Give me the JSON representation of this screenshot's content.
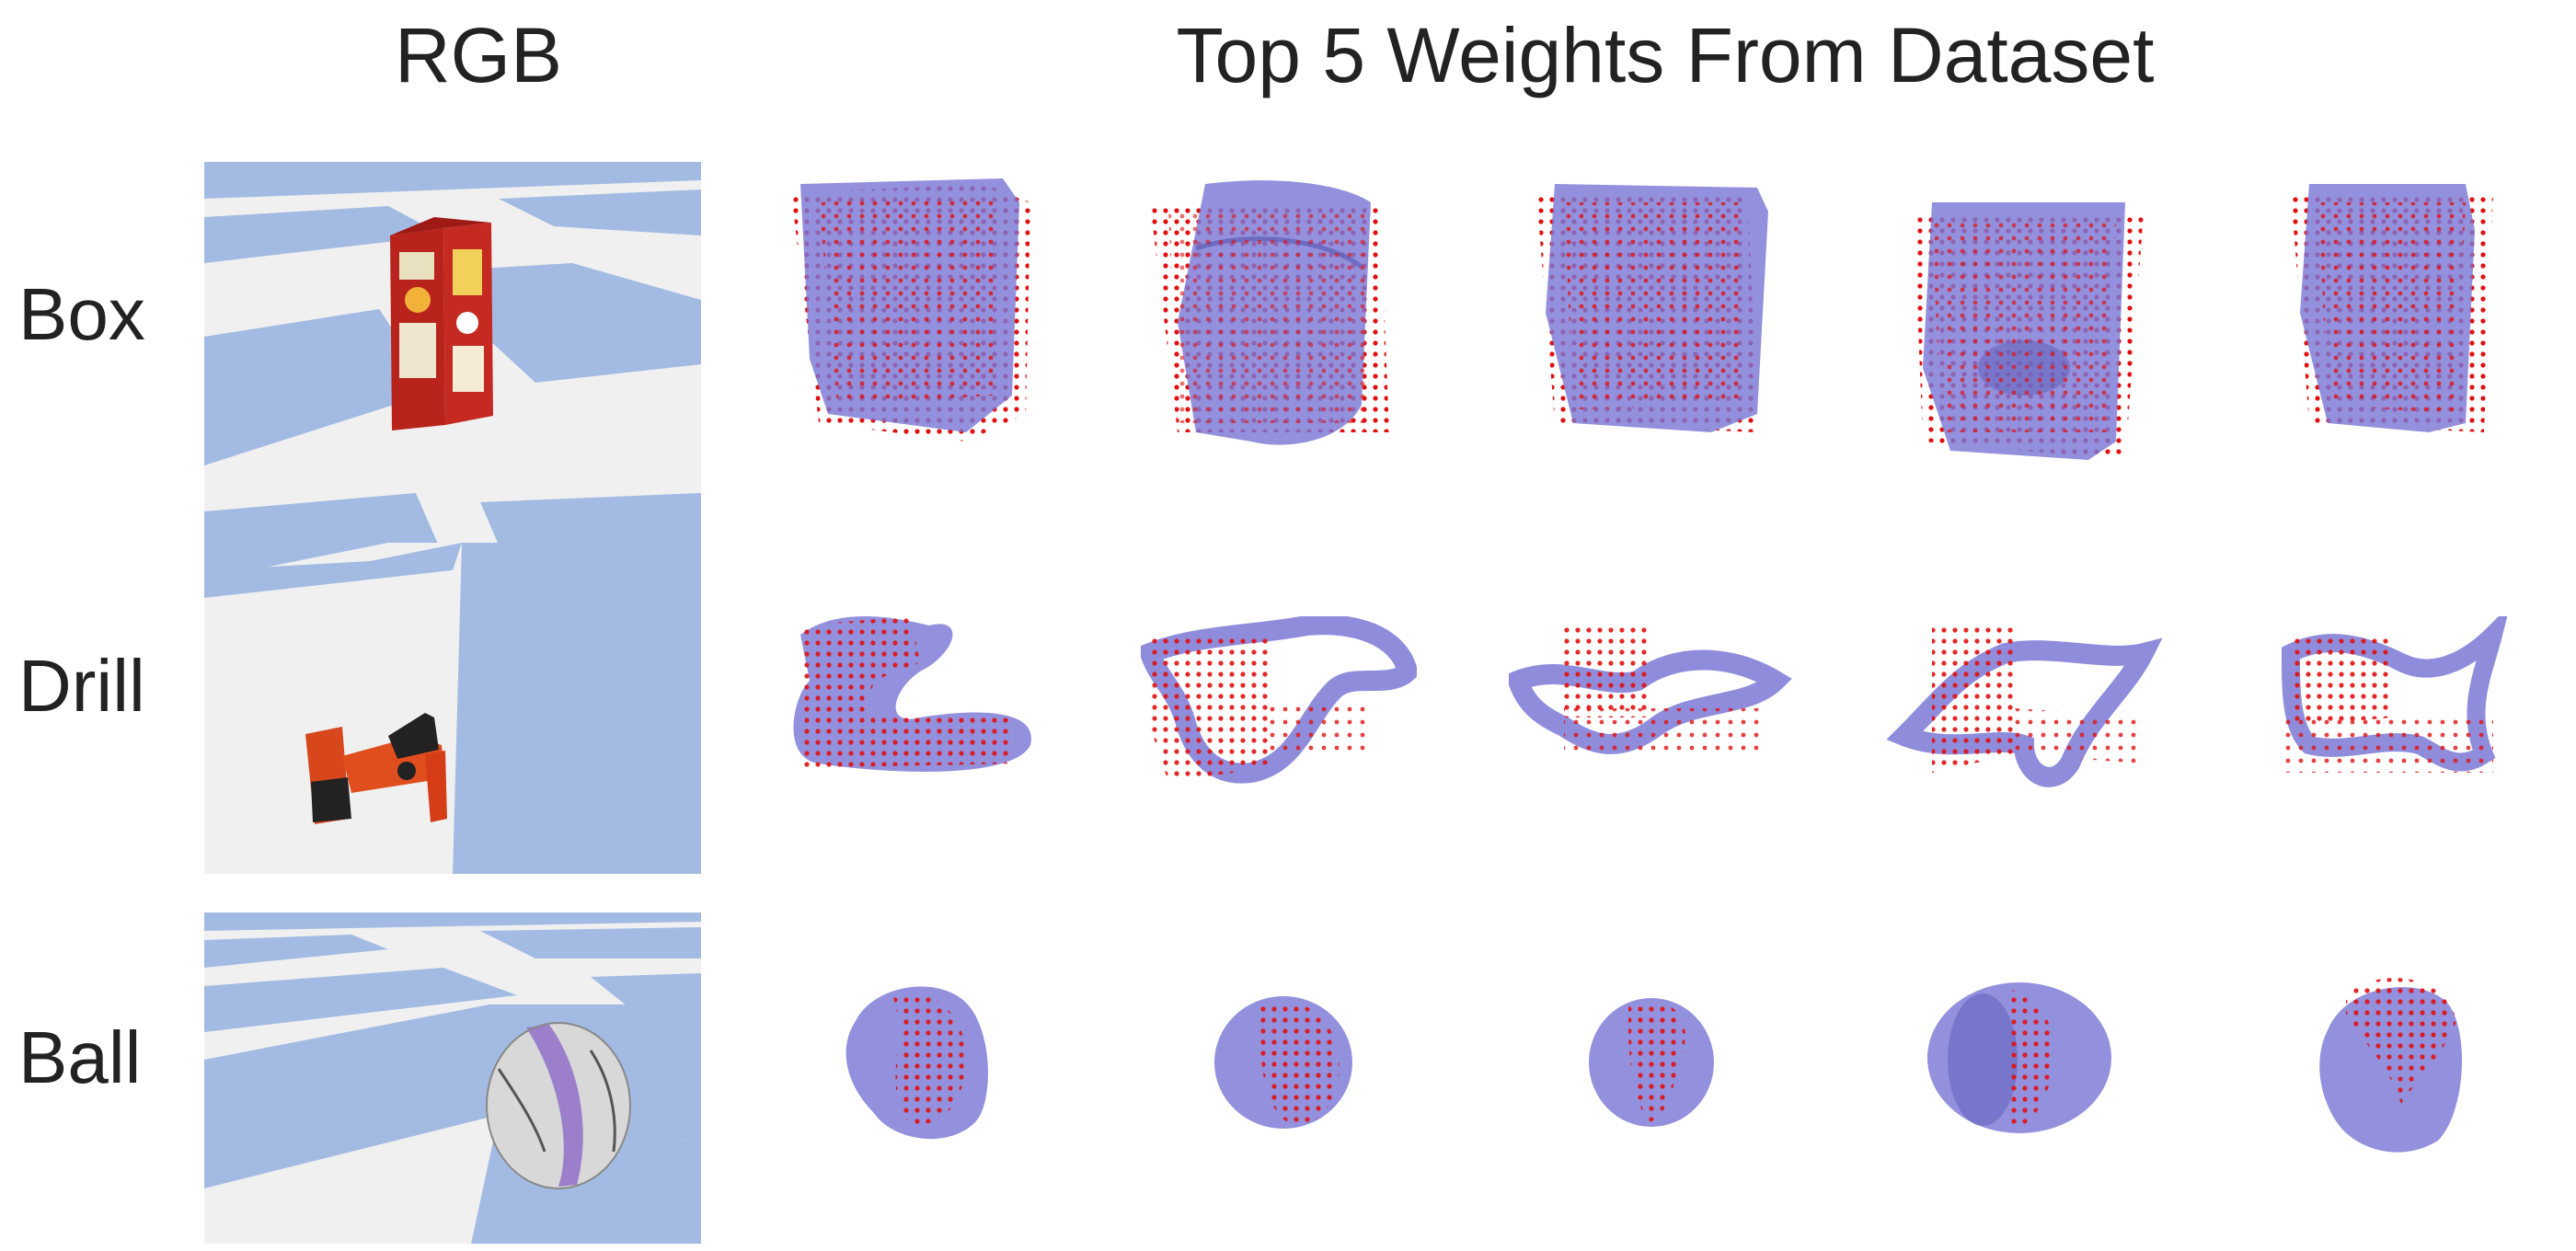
{
  "headers": {
    "rgb": "RGB",
    "top_weights": "Top 5 Weights From Dataset"
  },
  "rows": [
    {
      "label": "Box",
      "object": "box"
    },
    {
      "label": "Drill",
      "object": "drill"
    },
    {
      "label": "Ball",
      "object": "ball"
    }
  ],
  "colors": {
    "mesh": "#7b78d6",
    "points": "#e01010",
    "floor_blue": "#a3bbe3",
    "floor_white": "#f0f0f0"
  }
}
